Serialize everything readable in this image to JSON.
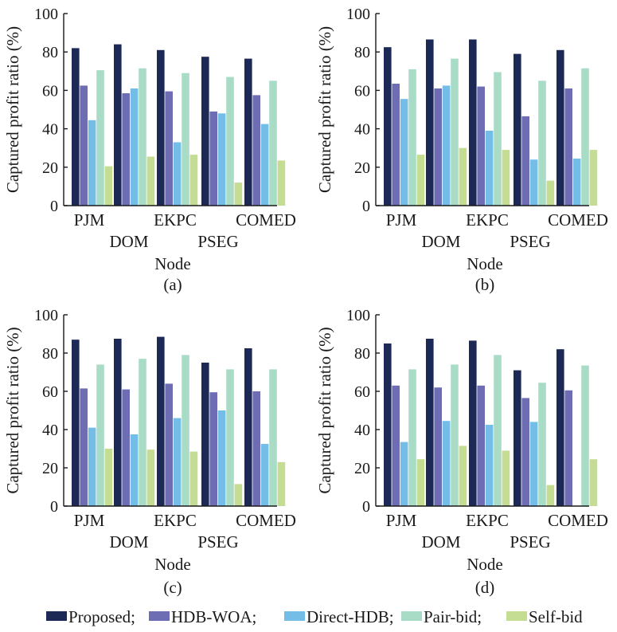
{
  "colors": {
    "Proposed": "#1c2856",
    "HDB-WOA": "#6e6db4",
    "Direct-HDB": "#74bde6",
    "Pair-bid": "#a9dcc6",
    "Self-bid": "#c4dd93"
  },
  "legend": {
    "items": [
      {
        "name": "Proposed",
        "text": "Proposed;"
      },
      {
        "name": "HDB-WOA",
        "text": "HDB-WOA;"
      },
      {
        "name": "Direct-HDB",
        "text": "Direct-HDB;"
      },
      {
        "name": "Pair-bid",
        "text": "Pair-bid;"
      },
      {
        "name": "Self-bid",
        "text": "Self-bid"
      }
    ]
  },
  "chart_data": [
    {
      "type": "bar",
      "caption": "(a)",
      "xlabel": "Node",
      "ylabel": "Captured profit ratio (%)",
      "ylim": [
        0,
        100
      ],
      "yticks": [
        0,
        20,
        40,
        60,
        80,
        100
      ],
      "categories": [
        "PJM",
        "DOM",
        "EKPC",
        "PSEG",
        "COMED"
      ],
      "series": [
        {
          "name": "Proposed",
          "values": [
            82,
            84,
            81,
            77.5,
            76.5
          ]
        },
        {
          "name": "HDB-WOA",
          "values": [
            62.5,
            58.5,
            59.5,
            49,
            57.5
          ]
        },
        {
          "name": "Direct-HDB",
          "values": [
            44.5,
            61,
            33,
            48,
            42.5
          ]
        },
        {
          "name": "Pair-bid",
          "values": [
            70.5,
            71.5,
            69,
            67,
            65
          ]
        },
        {
          "name": "Self-bid",
          "values": [
            20.5,
            25.5,
            26.5,
            12,
            23.5
          ]
        }
      ]
    },
    {
      "type": "bar",
      "caption": "(b)",
      "xlabel": "Node",
      "ylabel": "Captured profit ratio (%)",
      "ylim": [
        0,
        100
      ],
      "yticks": [
        0,
        20,
        40,
        60,
        80,
        100
      ],
      "categories": [
        "PJM",
        "DOM",
        "EKPC",
        "PSEG",
        "COMED"
      ],
      "series": [
        {
          "name": "Proposed",
          "values": [
            82.5,
            86.5,
            86.5,
            79,
            81
          ]
        },
        {
          "name": "HDB-WOA",
          "values": [
            63.5,
            61,
            62,
            46.5,
            61
          ]
        },
        {
          "name": "Direct-HDB",
          "values": [
            55.5,
            62.5,
            39,
            24,
            24.5
          ]
        },
        {
          "name": "Pair-bid",
          "values": [
            71,
            76.5,
            69.5,
            65,
            71.5
          ]
        },
        {
          "name": "Self-bid",
          "values": [
            26.5,
            30,
            29,
            13,
            29
          ]
        }
      ]
    },
    {
      "type": "bar",
      "caption": "(c)",
      "xlabel": "Node",
      "ylabel": "Captured profit ratio (%)",
      "ylim": [
        0,
        100
      ],
      "yticks": [
        0,
        20,
        40,
        60,
        80,
        100
      ],
      "categories": [
        "PJM",
        "DOM",
        "EKPC",
        "PSEG",
        "COMED"
      ],
      "series": [
        {
          "name": "Proposed",
          "values": [
            87,
            87.5,
            88.5,
            75,
            82.5
          ]
        },
        {
          "name": "HDB-WOA",
          "values": [
            61.5,
            61,
            64,
            59.5,
            60
          ]
        },
        {
          "name": "Direct-HDB",
          "values": [
            41,
            37.5,
            46,
            50,
            32.5
          ]
        },
        {
          "name": "Pair-bid",
          "values": [
            74,
            77,
            79,
            71.5,
            71.5
          ]
        },
        {
          "name": "Self-bid",
          "values": [
            30,
            29.5,
            28.5,
            11.5,
            23
          ]
        }
      ]
    },
    {
      "type": "bar",
      "caption": "(d)",
      "xlabel": "Node",
      "ylabel": "Captured profit ratio (%)",
      "ylim": [
        0,
        100
      ],
      "yticks": [
        0,
        20,
        40,
        60,
        80,
        100
      ],
      "categories": [
        "PJM",
        "DOM",
        "EKPC",
        "PSEG",
        "COMED"
      ],
      "series": [
        {
          "name": "Proposed",
          "values": [
            85,
            87.5,
            86.5,
            71,
            82
          ]
        },
        {
          "name": "HDB-WOA",
          "values": [
            63,
            62,
            63,
            56.5,
            60.5
          ]
        },
        {
          "name": "Direct-HDB",
          "values": [
            33.5,
            44.5,
            42.5,
            44,
            0
          ]
        },
        {
          "name": "Pair-bid",
          "values": [
            71.5,
            74,
            79,
            64.5,
            73.5
          ]
        },
        {
          "name": "Self-bid",
          "values": [
            24.5,
            31.5,
            29,
            11,
            24.5
          ]
        }
      ]
    }
  ]
}
